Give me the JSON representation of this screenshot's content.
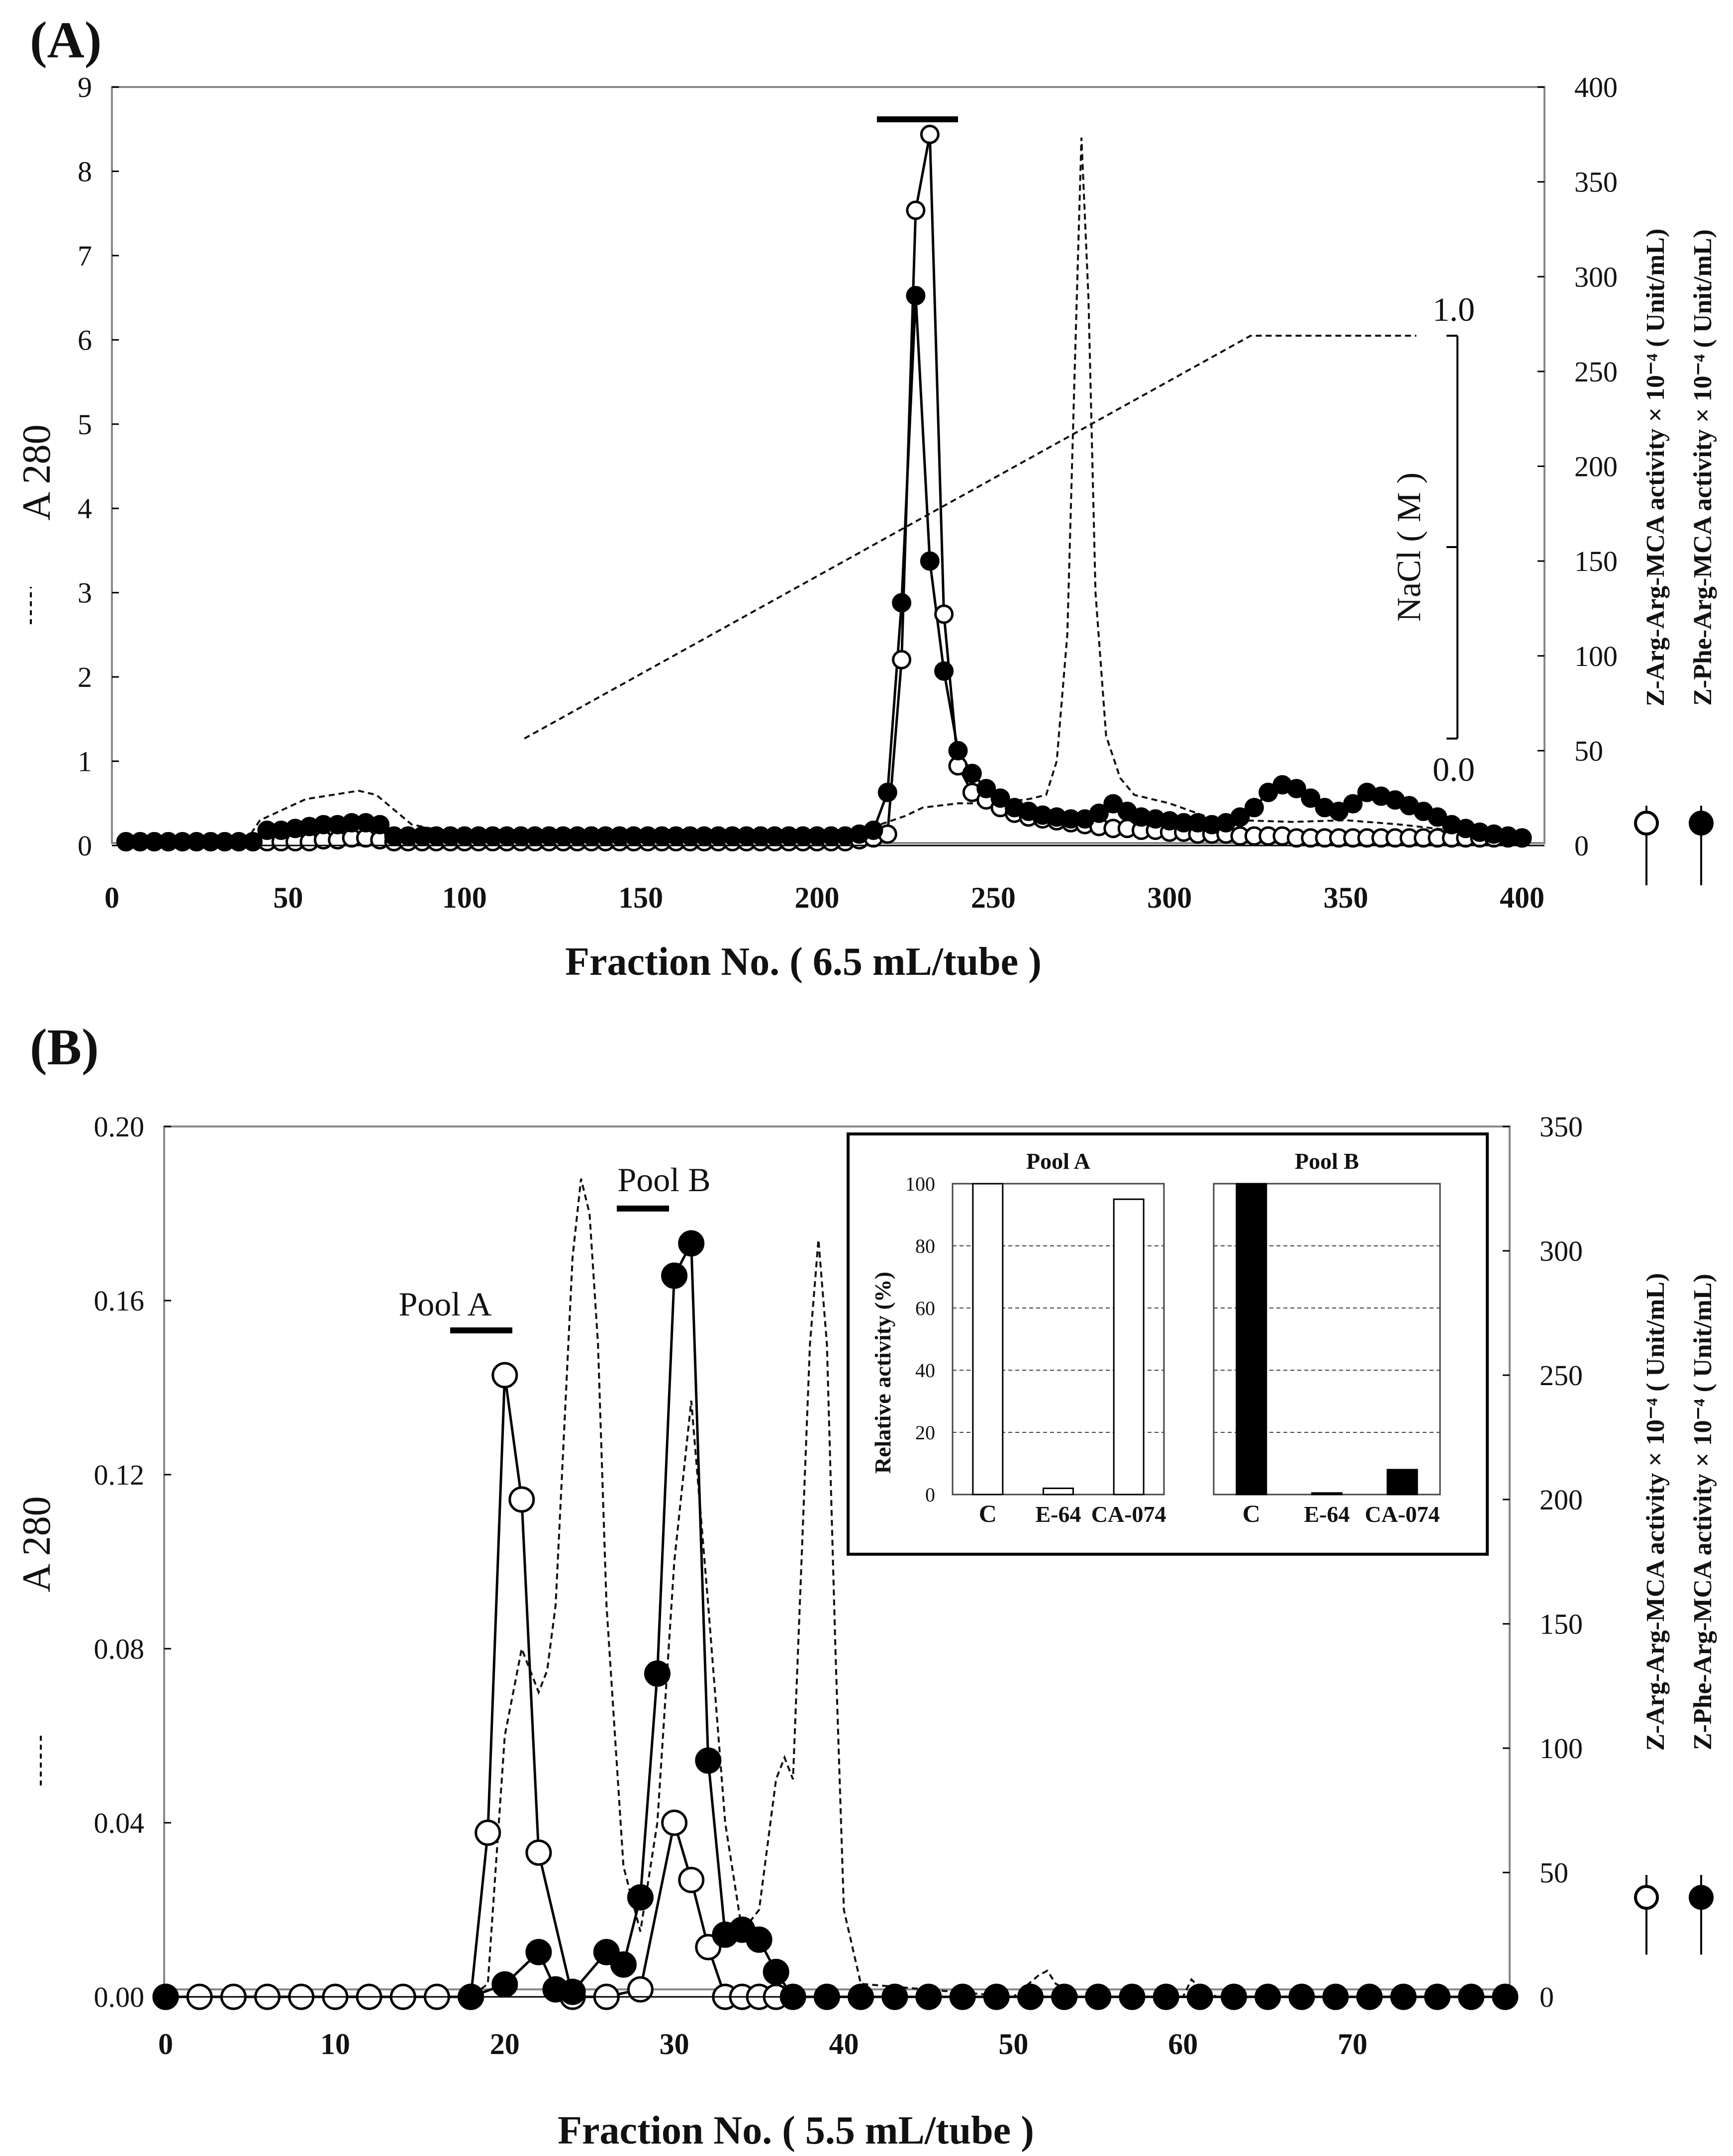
{
  "chart_data": [
    {
      "type": "line",
      "panel": "(A)",
      "xlabel": "Fraction No. ( 6.5 mL/tube )",
      "xlim": [
        0,
        400
      ],
      "xticks": [
        0,
        50,
        100,
        150,
        200,
        250,
        300,
        350,
        400
      ],
      "ylabel_left": "A 280",
      "ylim_left": [
        0,
        9
      ],
      "yticks_left": [
        0,
        1,
        2,
        3,
        4,
        5,
        6,
        7,
        8,
        9
      ],
      "ylim_right": [
        0,
        400
      ],
      "yticks_right": [
        0,
        50,
        100,
        150,
        200,
        250,
        300,
        350,
        400
      ],
      "ylabel_right_1": "Z-Arg-Arg-MCA activity × 10⁻⁴ ( Unit/mL)",
      "ylabel_right_2": "Z-Phe-Arg-MCA activity × 10⁻⁴ ( Unit/mL)",
      "nacl_label": "NaCl ( M )",
      "nacl_top": "1.0",
      "nacl_bottom": "0.0",
      "nacl_gradient": {
        "x": [
          117,
          323,
          370
        ],
        "molar": [
          0.0,
          1.0,
          1.0
        ]
      },
      "pool_bar": {
        "x": [
          217,
          240
        ],
        "y_right": 383
      },
      "series": [
        {
          "name": "A 280",
          "style": "dashed",
          "x": [
            4,
            38,
            42,
            55,
            70,
            75,
            85,
            100,
            150,
            200,
            210,
            218,
            225,
            230,
            240,
            250,
            260,
            265,
            268,
            271,
            273,
            275,
            277,
            279,
            282,
            286,
            290,
            300,
            310,
            320,
            335,
            350,
            365,
            380,
            398
          ],
          "y": [
            0.05,
            0.05,
            0.3,
            0.55,
            0.65,
            0.6,
            0.25,
            0.12,
            0.12,
            0.1,
            0.12,
            0.25,
            0.35,
            0.45,
            0.5,
            0.5,
            0.55,
            0.6,
            1.0,
            2.5,
            5.5,
            8.4,
            6.5,
            3.0,
            1.3,
            0.8,
            0.6,
            0.5,
            0.35,
            0.3,
            0.28,
            0.3,
            0.25,
            0.18,
            0.12
          ]
        },
        {
          "name": "Z-Arg-Arg-MCA",
          "style": "open-circle",
          "axis": "right",
          "x": [
            4,
            8,
            12,
            16,
            20,
            24,
            28,
            32,
            36,
            40,
            44,
            48,
            52,
            56,
            60,
            64,
            68,
            72,
            76,
            80,
            84,
            88,
            92,
            96,
            100,
            104,
            108,
            112,
            116,
            120,
            124,
            128,
            132,
            136,
            140,
            144,
            148,
            152,
            156,
            160,
            164,
            168,
            172,
            176,
            180,
            184,
            188,
            192,
            196,
            200,
            204,
            208,
            212,
            216,
            220,
            224,
            228,
            232,
            236,
            240,
            244,
            248,
            252,
            256,
            260,
            264,
            268,
            272,
            276,
            280,
            284,
            288,
            292,
            296,
            300,
            304,
            308,
            312,
            316,
            320,
            324,
            328,
            332,
            336,
            340,
            344,
            348,
            352,
            356,
            360,
            364,
            368,
            372,
            376,
            380,
            384,
            388,
            392,
            396,
            400
          ],
          "y": [
            2,
            2,
            2,
            2,
            2,
            2,
            2,
            2,
            2,
            2,
            2,
            2,
            2,
            2,
            3,
            3,
            4,
            4,
            3,
            2,
            2,
            2,
            2,
            2,
            2,
            2,
            2,
            2,
            2,
            2,
            2,
            2,
            2,
            2,
            2,
            2,
            2,
            2,
            2,
            2,
            2,
            2,
            2,
            2,
            2,
            2,
            2,
            2,
            2,
            2,
            2,
            2,
            3,
            4,
            6,
            98,
            335,
            375,
            122,
            42,
            28,
            24,
            20,
            17,
            15,
            14,
            13,
            12,
            11,
            10,
            9,
            9,
            8,
            8,
            7,
            7,
            6,
            6,
            6,
            5,
            5,
            5,
            5,
            4,
            4,
            4,
            4,
            4,
            4,
            4,
            4,
            4,
            4,
            4,
            4,
            4,
            4,
            4,
            4,
            4
          ]
        },
        {
          "name": "Z-Phe-Arg-MCA",
          "style": "filled-circle",
          "axis": "right",
          "x": [
            4,
            8,
            12,
            16,
            20,
            24,
            28,
            32,
            36,
            40,
            44,
            48,
            52,
            56,
            60,
            64,
            68,
            72,
            76,
            80,
            84,
            88,
            92,
            96,
            100,
            104,
            108,
            112,
            116,
            120,
            124,
            128,
            132,
            136,
            140,
            144,
            148,
            152,
            156,
            160,
            164,
            168,
            172,
            176,
            180,
            184,
            188,
            192,
            196,
            200,
            204,
            208,
            212,
            216,
            220,
            224,
            228,
            232,
            236,
            240,
            244,
            248,
            252,
            256,
            260,
            264,
            268,
            272,
            276,
            280,
            284,
            288,
            292,
            296,
            300,
            304,
            308,
            312,
            316,
            320,
            324,
            328,
            332,
            336,
            340,
            344,
            348,
            352,
            356,
            360,
            364,
            368,
            372,
            376,
            380,
            384,
            388,
            392,
            396,
            400
          ],
          "y": [
            2,
            2,
            2,
            2,
            2,
            2,
            2,
            2,
            2,
            2,
            8,
            8,
            9,
            10,
            11,
            11,
            12,
            12,
            11,
            5,
            5,
            5,
            5,
            5,
            5,
            5,
            5,
            5,
            5,
            5,
            5,
            5,
            5,
            5,
            5,
            5,
            5,
            5,
            5,
            5,
            5,
            5,
            5,
            5,
            5,
            5,
            5,
            5,
            5,
            5,
            5,
            5,
            6,
            8,
            28,
            128,
            290,
            150,
            92,
            50,
            38,
            30,
            25,
            20,
            18,
            16,
            15,
            14,
            14,
            17,
            22,
            18,
            15,
            14,
            13,
            12,
            12,
            11,
            12,
            15,
            20,
            28,
            32,
            30,
            25,
            20,
            18,
            22,
            28,
            26,
            24,
            21,
            18,
            15,
            11,
            9,
            7,
            6,
            5,
            4
          ]
        }
      ]
    },
    {
      "type": "line",
      "panel": "(B)",
      "xlabel": "Fraction No. ( 5.5 mL/tube )",
      "xlim": [
        0,
        80
      ],
      "xticks": [
        0,
        10,
        20,
        30,
        40,
        50,
        60,
        70
      ],
      "ylabel_left": "A 280",
      "ylim_left": [
        0,
        0.2
      ],
      "yticks_left": [
        "0.00",
        "0.04",
        "0.08",
        "0.12",
        "0.16",
        "0.20"
      ],
      "ylim_right": [
        0,
        350
      ],
      "yticks_right": [
        0,
        50,
        100,
        150,
        200,
        250,
        300,
        350
      ],
      "ylabel_right_1": "Z-Arg-Arg-MCA activity × 10⁻⁴ ( Unit/mL)",
      "ylabel_right_2": "Z-Phe-Arg-MCA activity × 10⁻⁴ ( Unit/mL)",
      "pool_a": {
        "label": "Pool A",
        "x": [
          18,
          21
        ],
        "y_left": 0.143
      },
      "pool_b": {
        "label": "Pool B",
        "x": [
          28,
          31
        ],
        "y_left": 0.174
      },
      "series": [
        {
          "name": "A 280",
          "style": "dashed",
          "x": [
            0,
            18,
            19,
            20,
            21,
            21.5,
            22,
            22.5,
            23,
            23.5,
            24,
            24.5,
            25,
            25.5,
            26,
            27,
            28,
            29,
            30,
            31,
            32,
            33,
            34,
            35,
            36,
            36.5,
            37,
            37.5,
            38,
            38.5,
            39,
            39.5,
            40,
            41,
            50,
            51.5,
            52,
            52.5,
            54,
            60,
            60.5,
            61,
            62,
            80
          ],
          "y": [
            0.0,
            0.0,
            0.003,
            0.06,
            0.08,
            0.075,
            0.07,
            0.075,
            0.09,
            0.13,
            0.17,
            0.188,
            0.18,
            0.15,
            0.09,
            0.03,
            0.015,
            0.04,
            0.1,
            0.137,
            0.09,
            0.04,
            0.015,
            0.02,
            0.05,
            0.055,
            0.05,
            0.1,
            0.15,
            0.174,
            0.15,
            0.08,
            0.02,
            0.003,
            0.0,
            0.005,
            0.006,
            0.003,
            0.0,
            0.0,
            0.004,
            0.002,
            0.0,
            0.0
          ]
        },
        {
          "name": "Z-Arg-Arg-MCA",
          "style": "open-circle",
          "axis": "right",
          "x": [
            0,
            2,
            4,
            6,
            8,
            10,
            12,
            14,
            16,
            18,
            19,
            20,
            21,
            22,
            24,
            26,
            28,
            30,
            31,
            32,
            33,
            34,
            35,
            36
          ],
          "y": [
            0,
            0,
            0,
            0,
            0,
            0,
            0,
            0,
            0,
            0,
            66,
            250,
            200,
            58,
            0,
            0,
            3,
            70,
            47,
            20,
            0,
            0,
            0,
            0
          ]
        },
        {
          "name": "Z-Phe-Arg-MCA",
          "style": "filled-circle",
          "axis": "right",
          "x": [
            0,
            18,
            20,
            22,
            23,
            24,
            26,
            27,
            28,
            29,
            30,
            31,
            32,
            33,
            34,
            35,
            36,
            37,
            39,
            41,
            43,
            45,
            47,
            49,
            51,
            53,
            55,
            57,
            59,
            61,
            63,
            65,
            67,
            69,
            71,
            73,
            75,
            77,
            79
          ],
          "y": [
            0,
            0,
            5,
            18,
            3,
            2,
            18,
            13,
            40,
            130,
            290,
            303,
            95,
            25,
            27,
            23,
            10,
            0,
            0,
            0,
            0,
            0,
            0,
            0,
            0,
            0,
            0,
            0,
            0,
            0,
            0,
            0,
            0,
            0,
            0,
            0,
            0,
            0,
            0
          ]
        }
      ],
      "inset": {
        "type": "bar",
        "ylabel": "Relative activity (%)",
        "ylim": [
          0,
          100
        ],
        "yticks": [
          0,
          20,
          40,
          60,
          80,
          100
        ],
        "panels": [
          {
            "title": "Pool  A",
            "fill": "open",
            "categories": [
              "C",
              "E-64",
              "CA-074"
            ],
            "values": [
              100,
              2,
              95
            ]
          },
          {
            "title": "Pool  B",
            "fill": "filled",
            "categories": [
              "C",
              "E-64",
              "CA-074"
            ],
            "values": [
              100,
              0.5,
              8
            ]
          }
        ]
      }
    }
  ]
}
